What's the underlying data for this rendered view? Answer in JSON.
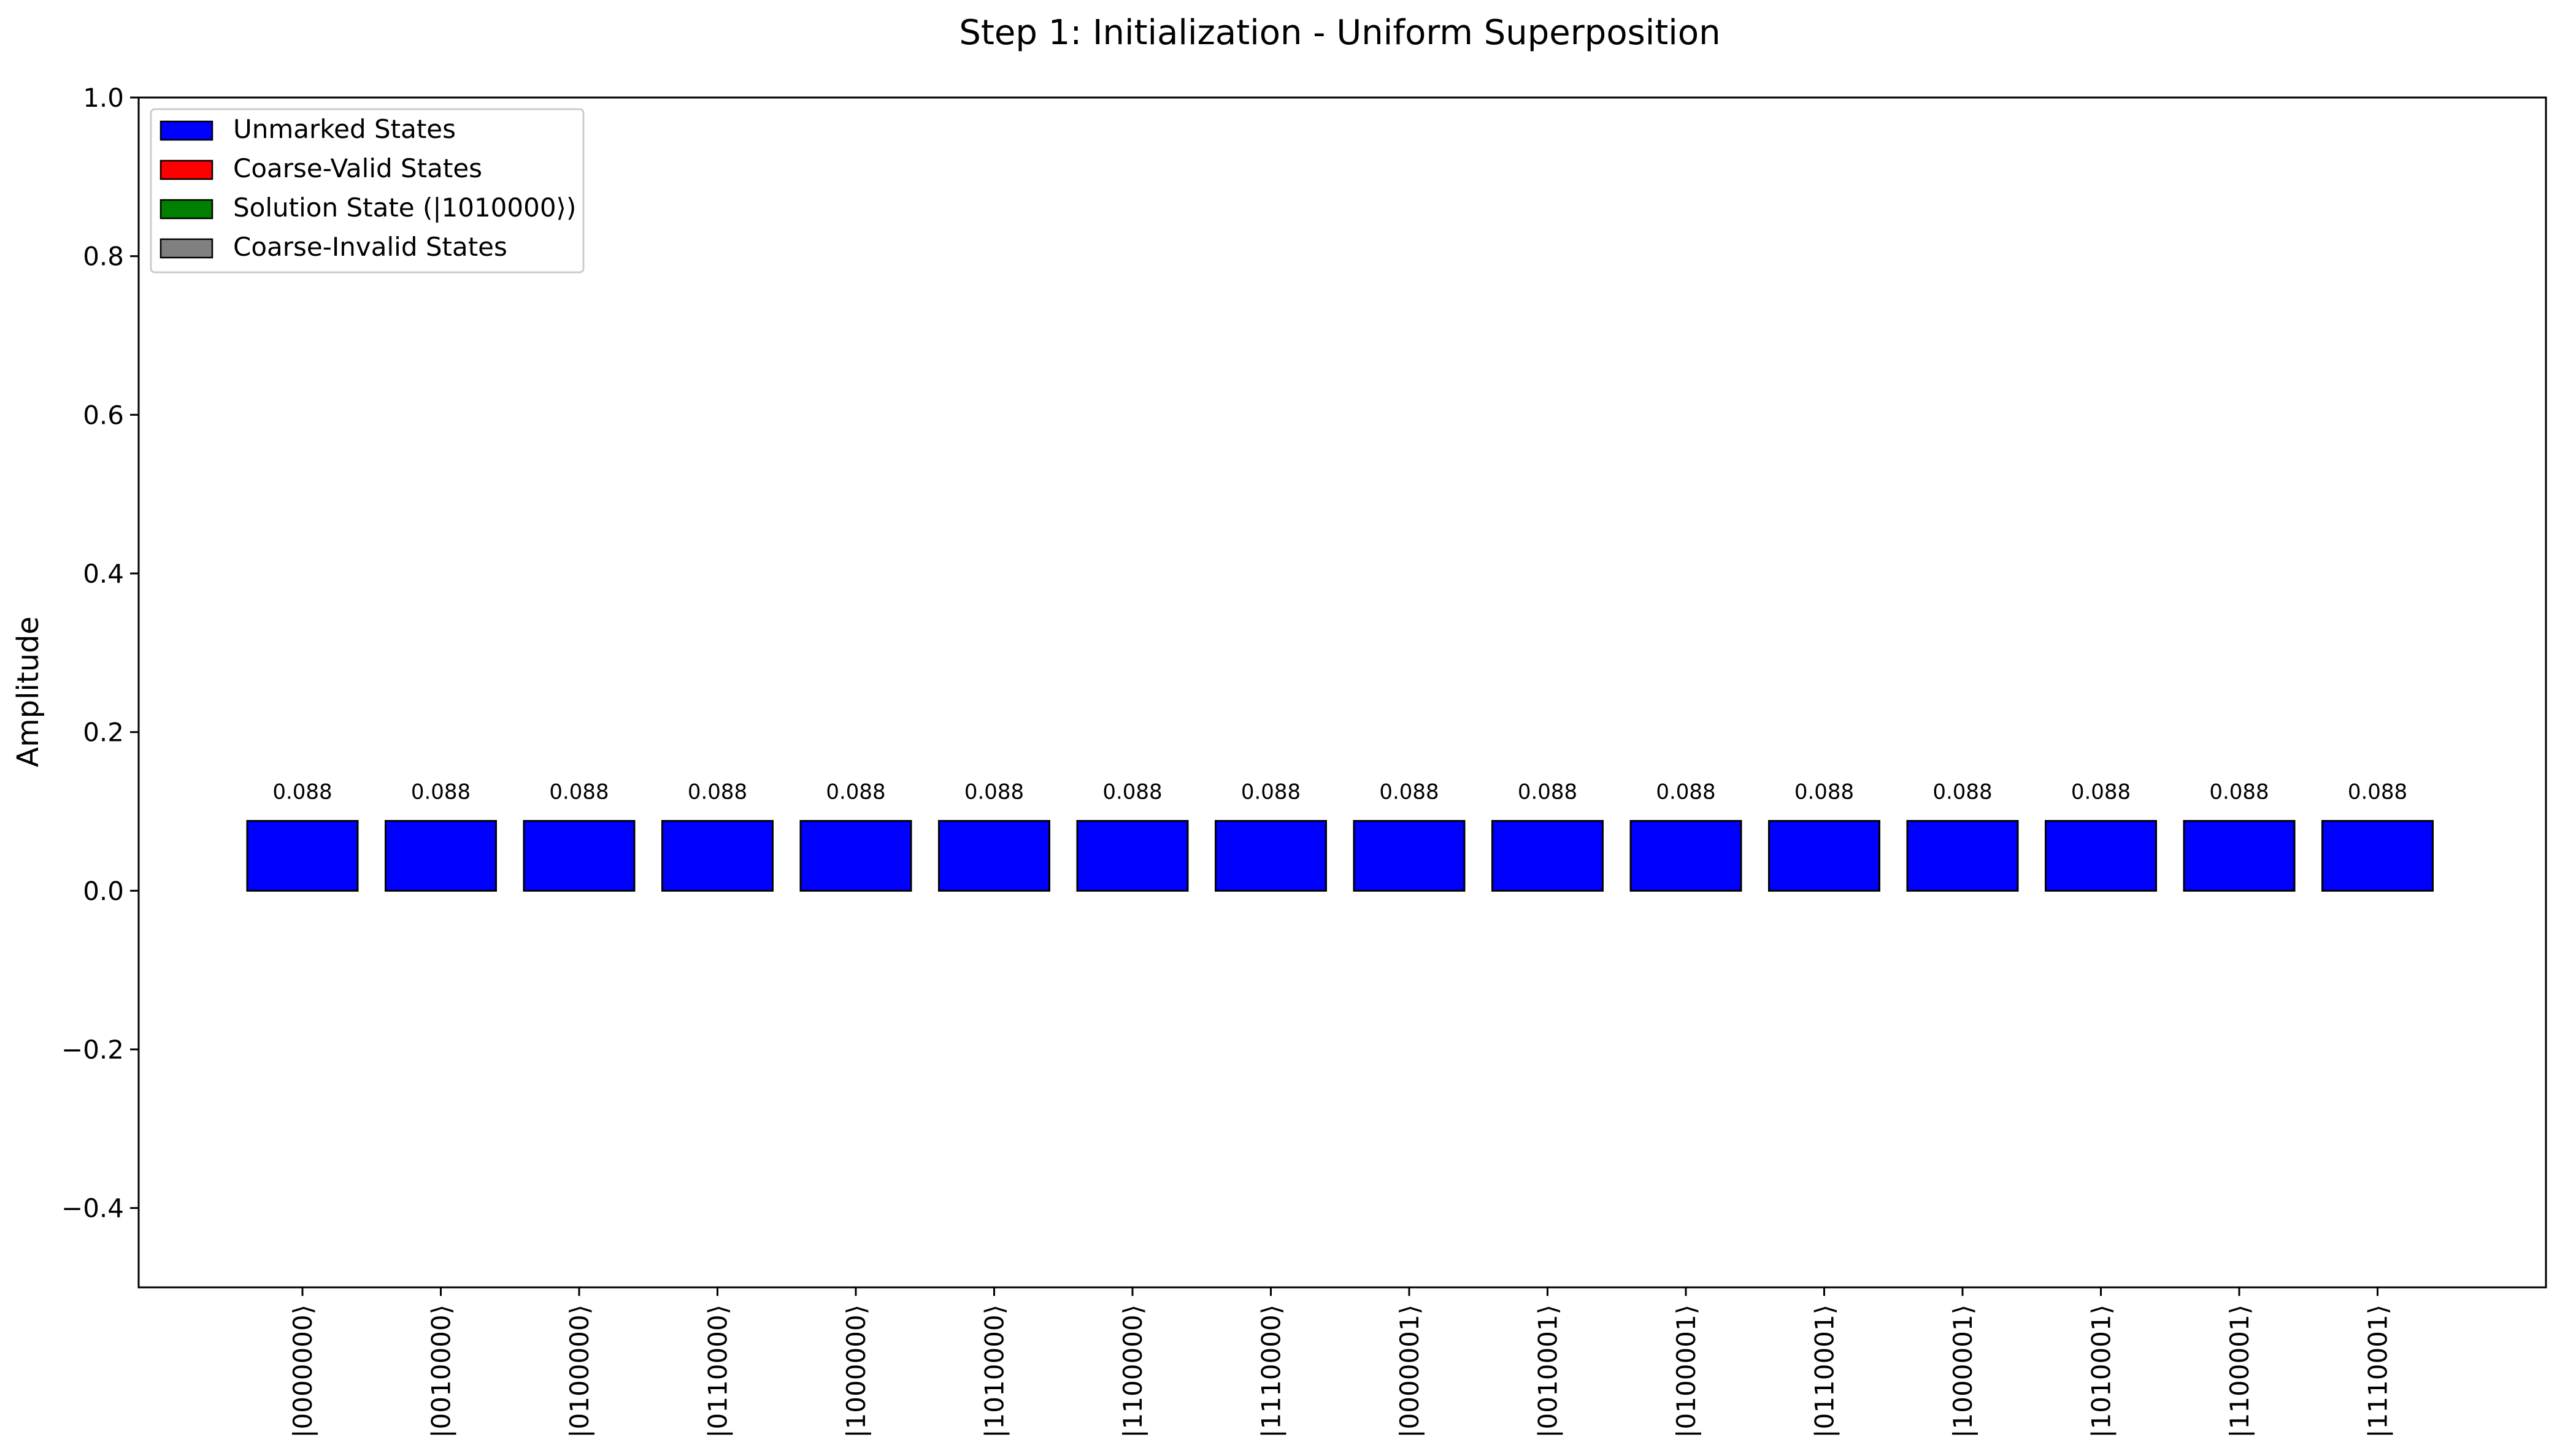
{
  "chart_data": {
    "type": "bar",
    "title": "Step 1: Initialization - Uniform Superposition",
    "xlabel": "",
    "ylabel": "Amplitude",
    "ylim": [
      -0.5,
      1.0
    ],
    "yticks": [
      -0.4,
      -0.2,
      0.0,
      0.2,
      0.4,
      0.6,
      0.8,
      1.0
    ],
    "ytick_labels": [
      "−0.4",
      "−0.2",
      "0.0",
      "0.2",
      "0.4",
      "0.6",
      "0.8",
      "1.0"
    ],
    "grid": false,
    "legend_position": "top-left",
    "legend": [
      {
        "label": "Unmarked States",
        "color": "#0000ff"
      },
      {
        "label": "Coarse-Valid States",
        "color": "#ff0000"
      },
      {
        "label": "Solution State (|1010000⟩)",
        "color": "#008000"
      },
      {
        "label": "Coarse-Invalid States",
        "color": "#808080"
      }
    ],
    "categories": [
      "|0000000⟩",
      "|0010000⟩",
      "|0100000⟩",
      "|0110000⟩",
      "|1000000⟩",
      "|1010000⟩",
      "|1100000⟩",
      "|1110000⟩",
      "|0000001⟩",
      "|0010001⟩",
      "|0100001⟩",
      "|0110001⟩",
      "|1000001⟩",
      "|1010001⟩",
      "|1100001⟩",
      "|1110001⟩"
    ],
    "values": [
      0.088,
      0.088,
      0.088,
      0.088,
      0.088,
      0.088,
      0.088,
      0.088,
      0.088,
      0.088,
      0.088,
      0.088,
      0.088,
      0.088,
      0.088,
      0.088
    ],
    "value_labels": [
      "0.088",
      "0.088",
      "0.088",
      "0.088",
      "0.088",
      "0.088",
      "0.088",
      "0.088",
      "0.088",
      "0.088",
      "0.088",
      "0.088",
      "0.088",
      "0.088",
      "0.088",
      "0.088"
    ],
    "bar_color": "#0000ff"
  }
}
